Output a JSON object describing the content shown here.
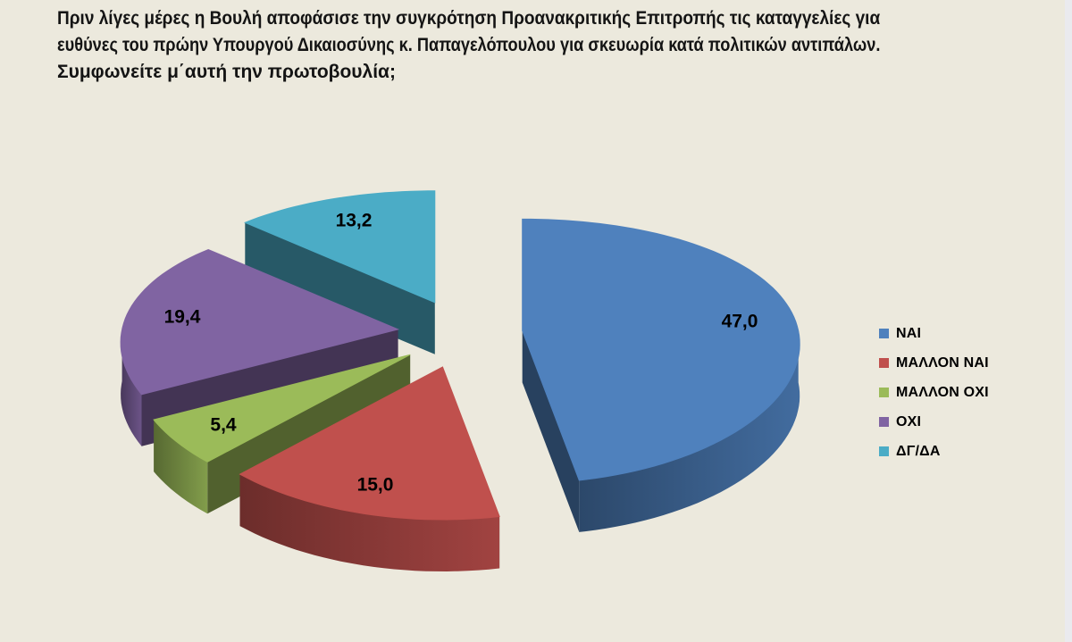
{
  "page": {
    "background": "#ECE9DD",
    "edge_strip_color": "#EAEAEE"
  },
  "question": {
    "lines": [
      "Πριν λίγες μέρες η Βουλή αποφάσισε την συγκρότηση Προανακριτικής Επιτροπής τις καταγγελίες για",
      "ευθύνες του πρώην Υπουργού Δικαιοσύνης κ. Παπαγελόπουλου για σκευωρία κατά πολιτικών αντιπάλων.",
      "Συμφωνείτε μ΄αυτή την πρωτοβουλία;"
    ]
  },
  "chart_data": {
    "type": "pie",
    "style": "3d-exploded",
    "title": "Πριν λίγες μέρες η Βουλή αποφάσισε την συγκρότηση Προανακριτικής Επιτροπής τις καταγγελίες για ευθύνες του πρώην Υπουργού Δικαιοσύνης κ. Παπαγελόπουλου για σκευωρία κατά πολιτικών αντιπάλων. Συμφωνείτε μ΄αυτή την πρωτοβουλία;",
    "unit": "percent",
    "categories": [
      "ΝΑΙ",
      "ΜΑΛΛΟΝ ΝΑΙ",
      "ΜΑΛΛΟΝ ΟΧΙ",
      "ΟΧΙ",
      "ΔΓ/ΔΑ"
    ],
    "values": [
      47.0,
      15.0,
      5.4,
      19.4,
      13.2
    ],
    "value_labels": [
      "47,0",
      "15,0",
      "5,4",
      "19,4",
      "13,2"
    ],
    "colors": [
      "#4F81BD",
      "#C0504D",
      "#9BBB59",
      "#8064A2",
      "#4BACC6"
    ],
    "label_color": "#000000",
    "background": "#ECE9DD",
    "legend_position": "right",
    "start_angle_deg": 0,
    "direction": "clockwise"
  }
}
